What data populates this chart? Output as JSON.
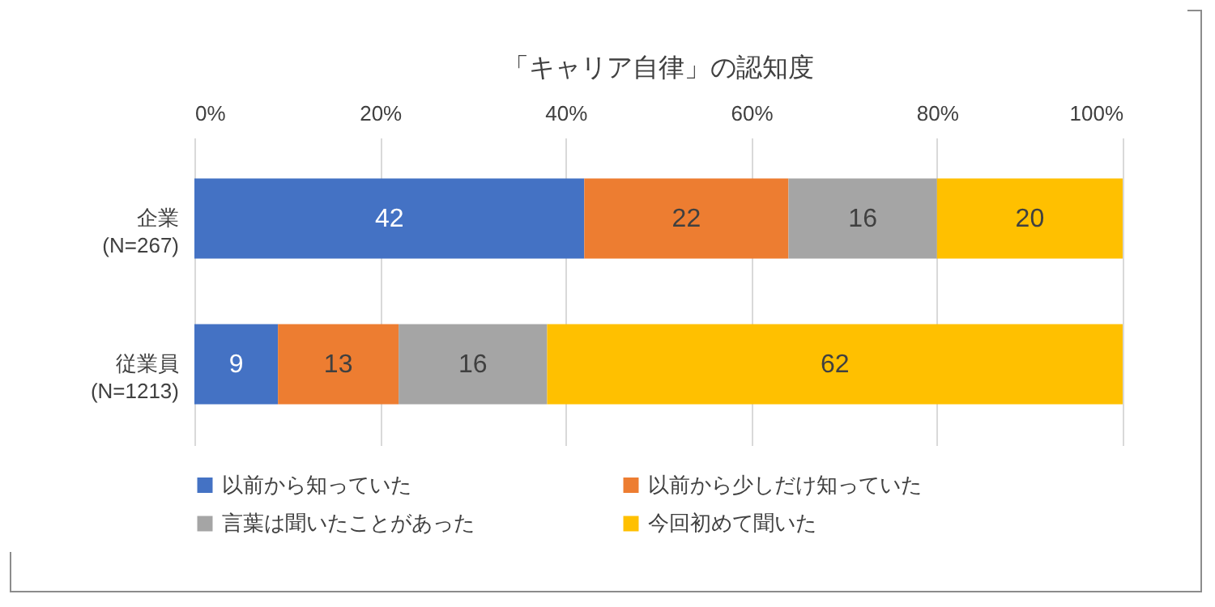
{
  "chart_data": {
    "type": "bar",
    "title": "「キャリア自律」の認知度",
    "orientation": "horizontal",
    "stacked": true,
    "categories": [
      "企業\n(N=267)",
      "従業員\n(N=1213)"
    ],
    "series": [
      {
        "name": "以前から知っていた",
        "color": "#4472c4",
        "values": [
          42,
          9
        ]
      },
      {
        "name": "以前から少しだけ知っていた",
        "color": "#ed7d31",
        "values": [
          22,
          13
        ]
      },
      {
        "name": "言葉は聞いたことがあった",
        "color": "#a5a5a5",
        "values": [
          16,
          16
        ]
      },
      {
        "name": "今回初めて聞いた",
        "color": "#ffc000",
        "values": [
          20,
          62
        ]
      }
    ],
    "xlim": [
      0,
      100
    ],
    "xticks": [
      {
        "value": 0,
        "label": "0%"
      },
      {
        "value": 20,
        "label": "20%"
      },
      {
        "value": 40,
        "label": "40%"
      },
      {
        "value": 60,
        "label": "60%"
      },
      {
        "value": 80,
        "label": "80%"
      },
      {
        "value": 100,
        "label": "100%"
      }
    ],
    "grid": "x",
    "legend": "bottom",
    "data_labels": true
  }
}
